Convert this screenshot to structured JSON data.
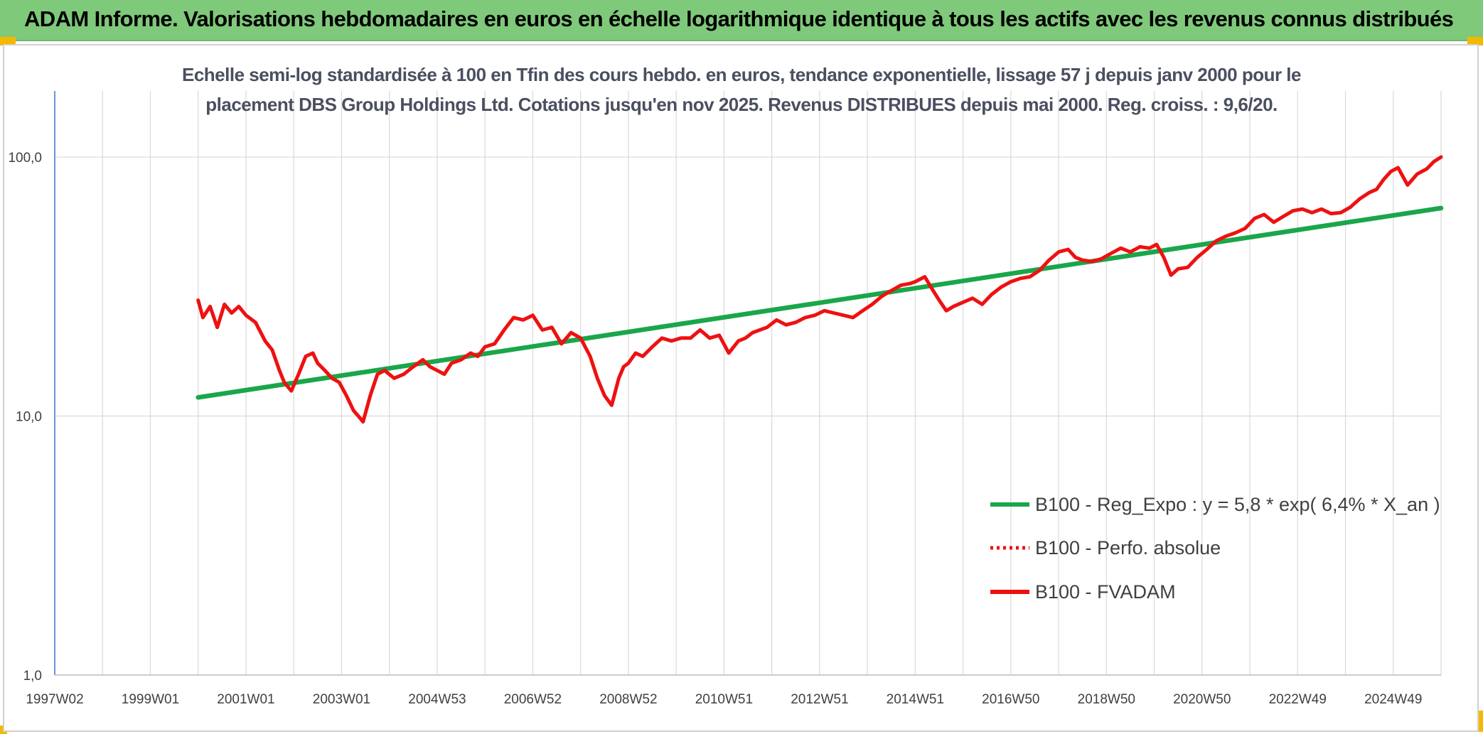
{
  "header": {
    "title": "ADAM Informe. Valorisations hebdomadaires en euros en échelle logarithmique identique à tous les actifs avec les revenus connus distribués"
  },
  "colors": {
    "header_bg": "#7fc97a",
    "corner": "#f5b800",
    "regression": "#1aa64a",
    "fvadam": "#ee1111",
    "grid": "#d9d9d9",
    "axis": "#4472c4"
  },
  "chart_data": {
    "type": "line",
    "title_line1": "Echelle semi-log standardisée à 100 en Tfin des cours hebdo. en euros, tendance exponentielle, lissage 57 j depuis janv 2000 pour le",
    "title_line2": "placement DBS Group Holdings Ltd. Cotations jusqu'en nov 2025. Revenus DISTRIBUES depuis mai 2000. Reg. croiss. : 9,6/20.",
    "yscale": "log",
    "ylim": [
      1,
      180
    ],
    "yticks": [
      1,
      10,
      100
    ],
    "ytick_labels": [
      "1,0",
      "10,0",
      "100,0"
    ],
    "xlim": [
      1997.0,
      2026.0
    ],
    "xticks": [
      1997.0,
      1999.0,
      2001.0,
      2003.0,
      2005.0,
      2007.0,
      2009.0,
      2011.0,
      2013.0,
      2015.0,
      2017.0,
      2019.0,
      2021.0,
      2023.0,
      2025.0
    ],
    "xtick_labels": [
      "1997W02",
      "1999W01",
      "2001W01",
      "2003W01",
      "2004W53",
      "2006W52",
      "2008W52",
      "2010W51",
      "2012W51",
      "2014W51",
      "2016W50",
      "2018W50",
      "2020W50",
      "2022W49",
      "2024W49"
    ],
    "legend_position": "right",
    "series": [
      {
        "name": "B100 - Reg_Expo : y = 5,8 * exp( 6,4% *  X_an )",
        "style": "solid-thick",
        "color": "#1aa64a",
        "x": [
          2000.0,
          2026.0
        ],
        "values": [
          11.8,
          63.5
        ]
      },
      {
        "name": "B100 - Perfo. absolue",
        "style": "dotted",
        "color": "#ee1111",
        "x": [],
        "values": []
      },
      {
        "name": "B100 - FVADAM",
        "style": "solid",
        "color": "#ee1111",
        "x": [
          2000.0,
          2000.1,
          2000.25,
          2000.4,
          2000.55,
          2000.7,
          2000.85,
          2001.0,
          2001.2,
          2001.4,
          2001.55,
          2001.7,
          2001.8,
          2001.95,
          2002.1,
          2002.25,
          2002.4,
          2002.5,
          2002.65,
          2002.8,
          2002.95,
          2003.1,
          2003.25,
          2003.35,
          2003.45,
          2003.6,
          2003.75,
          2003.9,
          2004.1,
          2004.3,
          2004.5,
          2004.7,
          2004.85,
          2005.0,
          2005.15,
          2005.3,
          2005.5,
          2005.7,
          2005.85,
          2006.0,
          2006.2,
          2006.4,
          2006.6,
          2006.8,
          2007.0,
          2007.2,
          2007.4,
          2007.6,
          2007.8,
          2008.0,
          2008.2,
          2008.35,
          2008.5,
          2008.65,
          2008.8,
          2008.9,
          2009.0,
          2009.15,
          2009.3,
          2009.5,
          2009.7,
          2009.9,
          2010.1,
          2010.3,
          2010.5,
          2010.7,
          2010.9,
          2011.1,
          2011.3,
          2011.45,
          2011.6,
          2011.75,
          2011.9,
          2012.1,
          2012.3,
          2012.5,
          2012.7,
          2012.9,
          2013.1,
          2013.3,
          2013.5,
          2013.7,
          2013.9,
          2014.1,
          2014.3,
          2014.5,
          2014.7,
          2014.9,
          2015.0,
          2015.2,
          2015.35,
          2015.5,
          2015.65,
          2015.8,
          2016.0,
          2016.2,
          2016.4,
          2016.6,
          2016.8,
          2017.0,
          2017.2,
          2017.4,
          2017.6,
          2017.8,
          2018.0,
          2018.2,
          2018.35,
          2018.5,
          2018.7,
          2018.9,
          2019.1,
          2019.3,
          2019.5,
          2019.7,
          2019.9,
          2020.05,
          2020.2,
          2020.35,
          2020.5,
          2020.7,
          2020.9,
          2021.1,
          2021.3,
          2021.5,
          2021.7,
          2021.9,
          2022.1,
          2022.3,
          2022.5,
          2022.7,
          2022.9,
          2023.1,
          2023.3,
          2023.5,
          2023.7,
          2023.9,
          2024.1,
          2024.3,
          2024.5,
          2024.65,
          2024.8,
          2024.95,
          2025.1,
          2025.3,
          2025.5,
          2025.7,
          2025.85,
          2026.0
        ],
        "values": [
          28.0,
          24.0,
          26.5,
          22.0,
          27.0,
          25.0,
          26.5,
          24.5,
          23.0,
          19.5,
          18.0,
          15.0,
          13.5,
          12.5,
          14.5,
          17.0,
          17.5,
          16.0,
          15.0,
          14.0,
          13.5,
          12.0,
          10.5,
          10.0,
          9.5,
          12.0,
          14.5,
          15.0,
          14.0,
          14.5,
          15.5,
          16.5,
          15.5,
          15.0,
          14.5,
          16.0,
          16.5,
          17.5,
          17.0,
          18.5,
          19.0,
          21.5,
          24.0,
          23.5,
          24.5,
          21.5,
          22.0,
          19.0,
          21.0,
          20.0,
          17.0,
          14.0,
          12.0,
          11.0,
          14.0,
          15.5,
          16.0,
          17.5,
          17.0,
          18.5,
          20.0,
          19.5,
          20.0,
          20.0,
          21.5,
          20.0,
          20.5,
          17.5,
          19.5,
          20.0,
          21.0,
          21.5,
          22.0,
          23.5,
          22.5,
          23.0,
          24.0,
          24.5,
          25.5,
          25.0,
          24.5,
          24.0,
          25.5,
          27.0,
          29.0,
          30.5,
          32.0,
          32.5,
          33.0,
          34.5,
          31.0,
          28.0,
          25.5,
          26.5,
          27.5,
          28.5,
          27.0,
          29.5,
          31.5,
          33.0,
          34.0,
          34.5,
          36.5,
          40.0,
          43.0,
          44.0,
          41.0,
          40.0,
          39.5,
          40.5,
          42.5,
          44.5,
          43.0,
          45.0,
          44.5,
          46.0,
          41.0,
          35.0,
          37.0,
          37.5,
          41.0,
          44.0,
          47.5,
          49.5,
          51.0,
          53.0,
          58.0,
          60.0,
          56.0,
          59.0,
          62.0,
          63.0,
          61.0,
          63.0,
          60.5,
          61.0,
          64.0,
          69.0,
          73.0,
          75.0,
          82.0,
          88.0,
          91.0,
          78.0,
          86.0,
          90.0,
          96.0,
          100.0
        ]
      }
    ]
  }
}
